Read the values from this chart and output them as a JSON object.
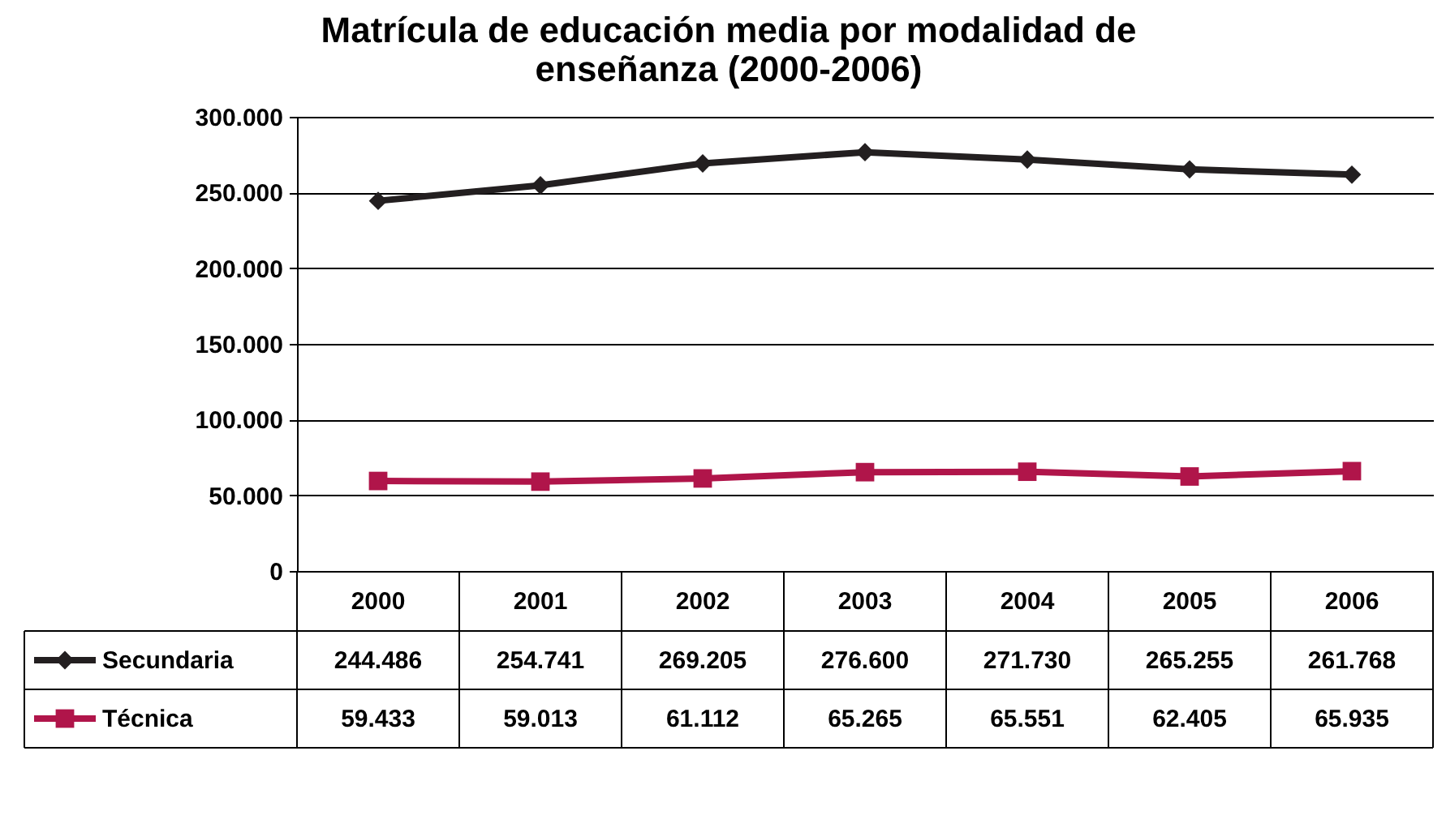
{
  "chart_data": {
    "type": "line",
    "title": "Matrícula de educación media por modalidad de enseñanza (2000-2006)",
    "categories": [
      "2000",
      "2001",
      "2002",
      "2003",
      "2004",
      "2005",
      "2006"
    ],
    "series": [
      {
        "name": "Secundaria",
        "color": "#231f20",
        "marker": "diamond",
        "values": [
          244486,
          254741,
          269205,
          276600,
          271730,
          265255,
          261768
        ],
        "value_labels": [
          "244.486",
          "254.741",
          "269.205",
          "276.600",
          "271.730",
          "265.255",
          "261.768"
        ]
      },
      {
        "name": "Técnica",
        "color": "#b0154a",
        "marker": "square",
        "values": [
          59433,
          59013,
          61112,
          65265,
          65551,
          62405,
          65935
        ],
        "value_labels": [
          "59.433",
          "59.013",
          "61.112",
          "65.265",
          "65.551",
          "62.405",
          "65.935"
        ]
      }
    ],
    "ylim": [
      0,
      300000
    ],
    "yticks": [
      {
        "value": 0,
        "label": "0"
      },
      {
        "value": 50000,
        "label": "50.000"
      },
      {
        "value": 100000,
        "label": "100.000"
      },
      {
        "value": 150000,
        "label": "150.000"
      },
      {
        "value": 200000,
        "label": "200.000"
      },
      {
        "value": 250000,
        "label": "250.000"
      },
      {
        "value": 300000,
        "label": "300.000"
      }
    ],
    "grid": "y",
    "legend": "bottom left",
    "line_style": "solid"
  }
}
